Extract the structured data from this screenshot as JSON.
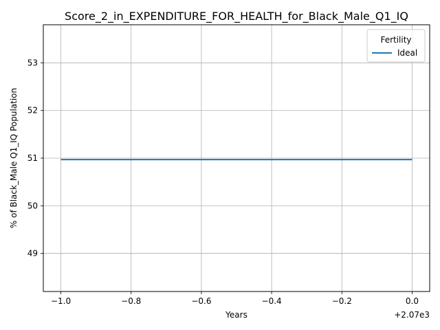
{
  "chart_data": {
    "type": "line",
    "title": "Score_2_in_EXPENDITURE_FOR_HEALTH_for_Black_Male_Q1_IQ",
    "xlabel": "Years",
    "ylabel": "% of Black_Male Q1_IQ Population",
    "x_offset_label": "+2.07e3",
    "x_ticks": [
      -1.0,
      -0.8,
      -0.6,
      -0.4,
      -0.2,
      0.0
    ],
    "x_tick_labels": [
      "−1.0",
      "−0.8",
      "−0.6",
      "−0.4",
      "−0.2",
      "0.0"
    ],
    "y_ticks": [
      49,
      50,
      51,
      52,
      53
    ],
    "y_tick_labels": [
      "49",
      "50",
      "51",
      "52",
      "53"
    ],
    "xlim": [
      -1.05,
      0.05
    ],
    "ylim": [
      48.2,
      53.8
    ],
    "grid": true,
    "legend": {
      "title": "Fertility",
      "placement": "top-right"
    },
    "series": [
      {
        "name": "Ideal",
        "color": "#1f77b4",
        "x": [
          -1.0,
          0.0
        ],
        "y": [
          50.97,
          50.97
        ]
      }
    ]
  }
}
